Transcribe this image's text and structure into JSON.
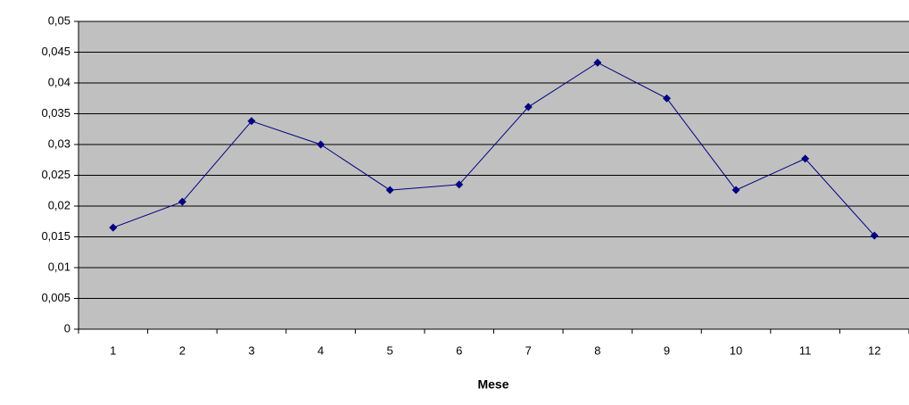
{
  "chart_data": {
    "type": "line",
    "x_label": "Mese",
    "categories": [
      "1",
      "2",
      "3",
      "4",
      "5",
      "6",
      "7",
      "8",
      "9",
      "10",
      "11",
      "12"
    ],
    "values": [
      0.0165,
      0.0207,
      0.0338,
      0.03,
      0.0226,
      0.0235,
      0.0361,
      0.0433,
      0.0375,
      0.0226,
      0.0277,
      0.0152
    ],
    "color": "#000080",
    "plot_background": "#c0c0c0",
    "ylim": [
      0,
      0.05
    ],
    "yticks": [
      0,
      {
        "value": 0.005,
        "label": "0,005"
      },
      {
        "value": 0.01,
        "label": "0,01"
      },
      {
        "value": 0.015,
        "label": "0,015"
      },
      {
        "value": 0.02,
        "label": "0,02"
      },
      {
        "value": 0.025,
        "label": "0,025"
      },
      {
        "value": 0.03,
        "label": "0,03"
      },
      {
        "value": 0.035,
        "label": "0,035"
      },
      {
        "value": 0.04,
        "label": "0,04"
      },
      {
        "value": 0.045,
        "label": "0,045"
      },
      {
        "value": 0.05,
        "label": "0,05"
      }
    ],
    "grid": true
  }
}
